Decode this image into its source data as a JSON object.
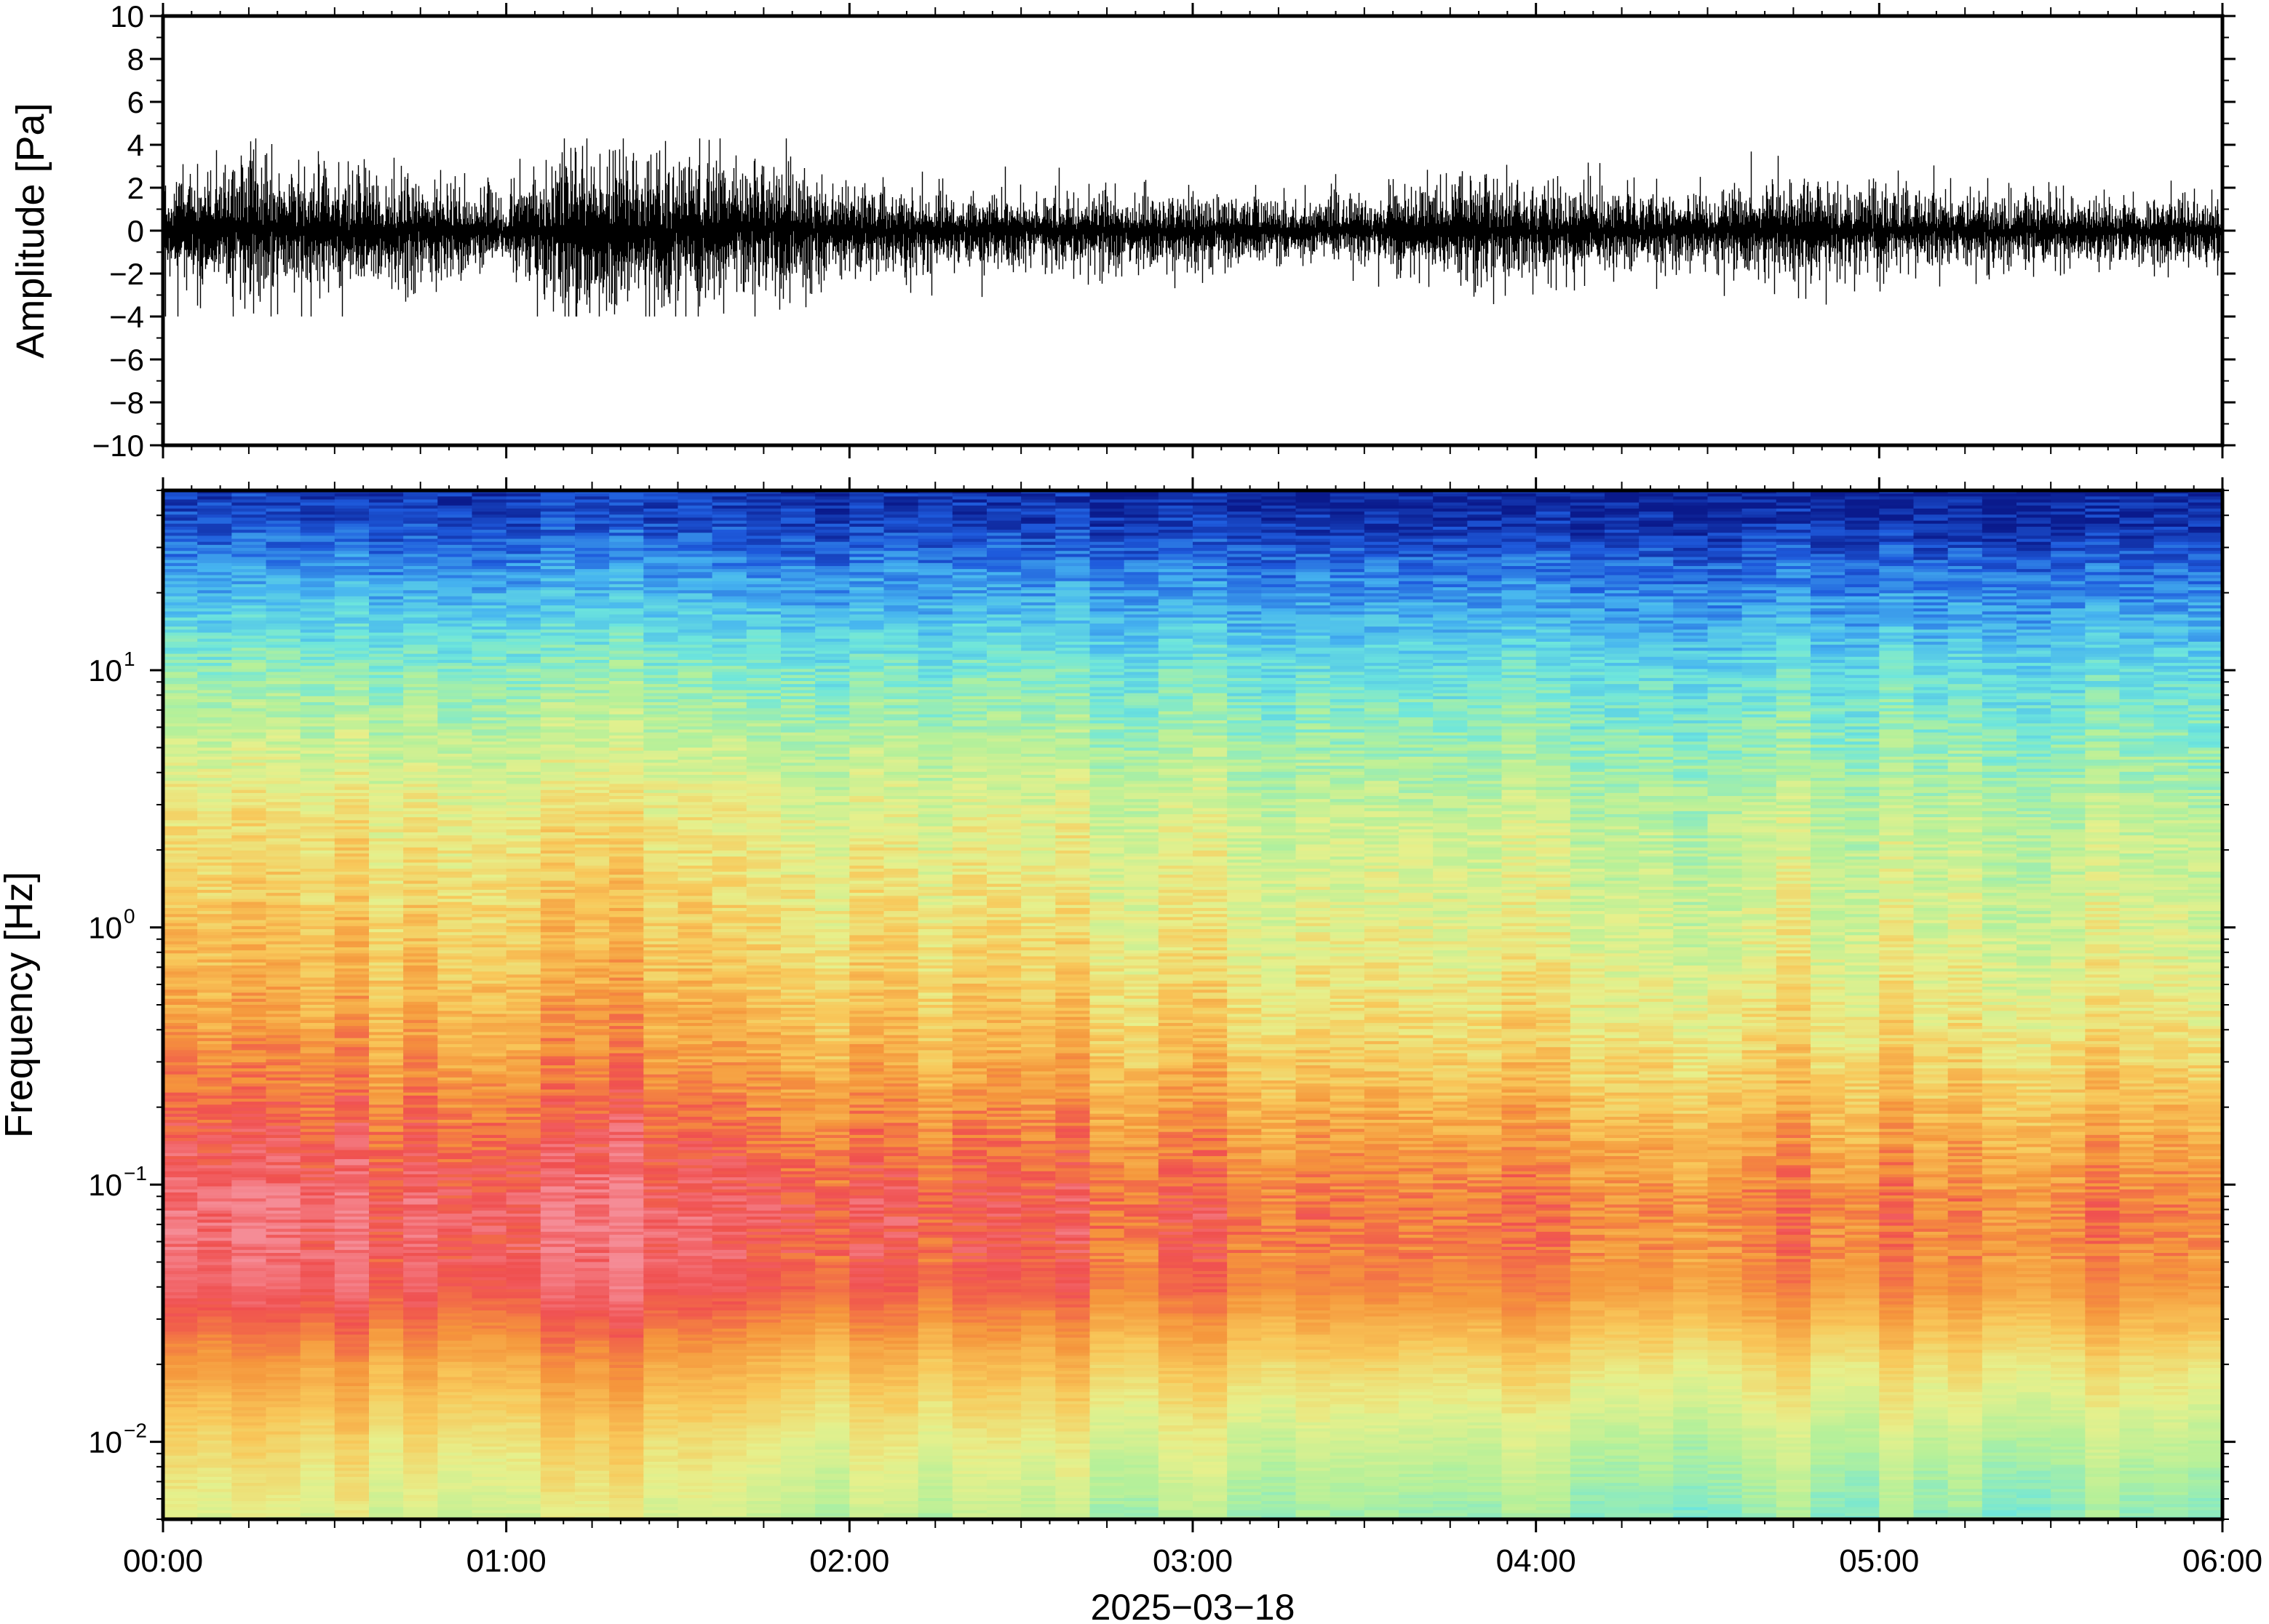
{
  "chart_data": [
    {
      "type": "line",
      "ylabel": "Amplitude [Pa]",
      "ylim": [
        -10,
        10
      ],
      "y_ticks": [
        "10",
        "8",
        "6",
        "4",
        "2",
        "0",
        "−2",
        "−4",
        "−6",
        "−8",
        "−10"
      ],
      "y_tick_values": [
        10,
        8,
        6,
        4,
        2,
        0,
        -2,
        -4,
        -6,
        -8,
        -10
      ],
      "x_range_hours": [
        0,
        6
      ],
      "series": [
        {
          "envelope_hours": [
            0,
            0.25,
            0.5,
            0.75,
            1.0,
            1.15,
            1.25,
            1.5,
            1.75,
            2.0,
            2.25,
            2.5,
            2.75,
            3.0,
            3.25,
            3.5,
            3.75,
            4.0,
            4.25,
            4.5,
            4.75,
            5.0,
            5.25,
            5.5,
            5.75,
            6.0
          ],
          "envelope_amplitude_pa": [
            1.5,
            2.0,
            1.8,
            1.4,
            1.0,
            2.3,
            2.5,
            2.0,
            1.8,
            1.2,
            1.1,
            1.0,
            1.1,
            1.0,
            0.9,
            0.9,
            1.4,
            1.3,
            1.1,
            1.0,
            1.4,
            1.2,
            1.0,
            0.9,
            0.9,
            1.0
          ],
          "peak_max_pa": 4.3,
          "peak_min_pa": -4.0,
          "color": "#000000"
        }
      ]
    },
    {
      "type": "heatmap",
      "ylabel": "Frequency [Hz]",
      "xlabel": "2025−03−18",
      "y_scale": "log",
      "ylim": [
        0.005,
        50
      ],
      "y_ticks": [
        {
          "base": "10",
          "exp": "−2",
          "value": 0.01
        },
        {
          "base": "10",
          "exp": "−1",
          "value": 0.1
        },
        {
          "base": "10",
          "exp": "0",
          "value": 1
        },
        {
          "base": "10",
          "exp": "1",
          "value": 10
        }
      ],
      "x_ticks": [
        "00:00",
        "01:00",
        "02:00",
        "03:00",
        "04:00",
        "05:00",
        "06:00"
      ],
      "x_tick_hours": [
        0,
        1,
        2,
        3,
        4,
        5,
        6
      ],
      "colormap": [
        "#0a1a8c",
        "#1e5adc",
        "#46b4f0",
        "#6ee6dc",
        "#b4f09a",
        "#e6f08c",
        "#f8c85a",
        "#f5963c",
        "#f05050",
        "#f58c96"
      ],
      "time_columns": 60,
      "column_intensity_hours": [
        0,
        0.5,
        1.0,
        1.2,
        1.5,
        2.0,
        2.5,
        3.0,
        3.5,
        4.0,
        4.5,
        5.0,
        5.5,
        6.0
      ],
      "column_intensity": [
        0.95,
        1.0,
        0.9,
        1.05,
        1.0,
        0.85,
        0.85,
        0.8,
        0.75,
        0.8,
        0.7,
        0.75,
        0.7,
        0.72
      ]
    }
  ]
}
